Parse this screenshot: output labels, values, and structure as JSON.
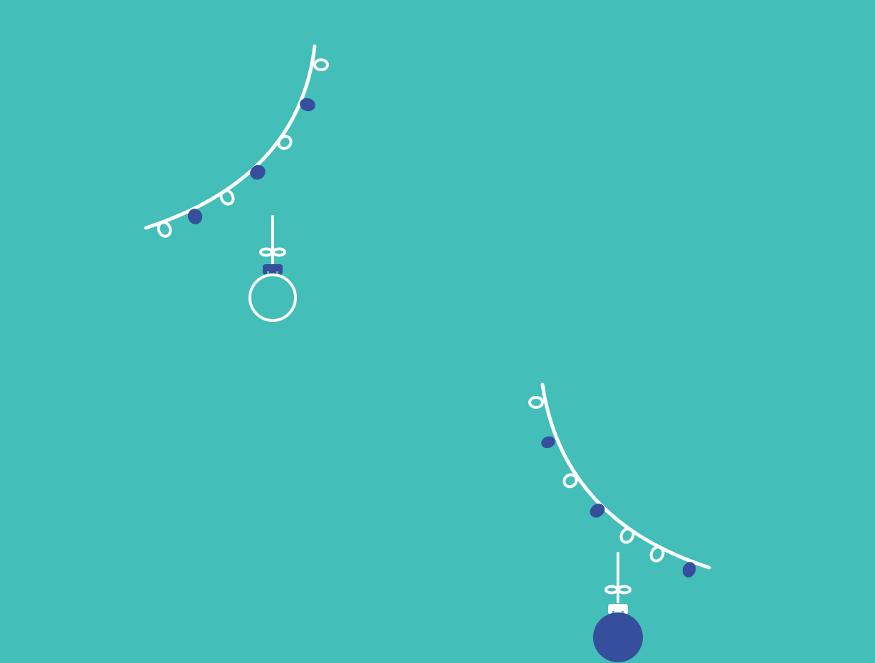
{
  "colors": {
    "background": "#43BEB8",
    "line": "#FFFFFF",
    "accent": "#354F9C"
  },
  "decorations": [
    {
      "type": "garland",
      "bulbs": [
        "outline",
        "filled",
        "outline",
        "filled",
        "outline",
        "filled",
        "outline"
      ]
    },
    {
      "type": "ornament",
      "style": "outline"
    },
    {
      "type": "garland",
      "bulbs": [
        "outline",
        "filled",
        "outline",
        "filled",
        "outline",
        "outline",
        "filled"
      ]
    },
    {
      "type": "ornament",
      "style": "filled"
    }
  ]
}
